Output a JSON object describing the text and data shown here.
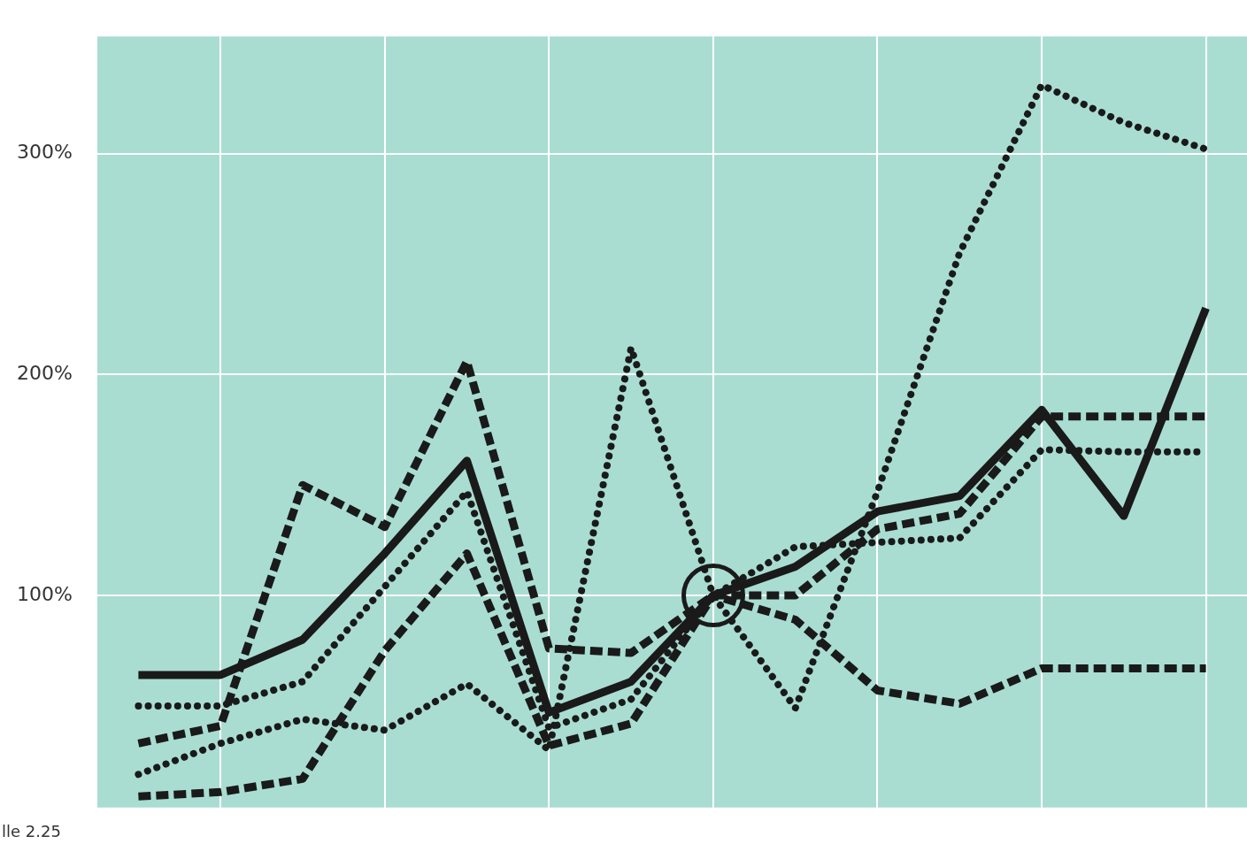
{
  "chart_data": {
    "type": "line",
    "ylim": [
      4,
      353
    ],
    "categories": [
      null,
      null,
      null,
      null,
      null,
      null,
      null,
      null,
      null,
      null,
      null,
      null,
      null,
      null
    ],
    "yticks": [
      {
        "value": 100,
        "label": "100%"
      },
      {
        "value": 200,
        "label": "200%"
      },
      {
        "value": 300,
        "label": "300%"
      }
    ],
    "tick_labels": "y",
    "grid": true,
    "legend": false,
    "marker": "none",
    "annotations": [
      "lle 2.25"
    ],
    "series": [
      {
        "color": "#1a1a1a",
        "line_style": "solid",
        "values": [
          64,
          64,
          80,
          119,
          161,
          47,
          61,
          100,
          113,
          138,
          145,
          184,
          136,
          230
        ]
      },
      {
        "color": "#1a1a1a",
        "line_style": "dotted",
        "values": [
          50,
          50,
          61,
          104,
          147,
          40,
          53,
          100,
          122,
          124,
          126,
          166,
          165,
          165
        ]
      },
      {
        "color": "#1a1a1a",
        "line_style": "dashed",
        "values": [
          33,
          41,
          150,
          131,
          206,
          76,
          74,
          100,
          100,
          130,
          137,
          181,
          181,
          181
        ]
      },
      {
        "color": "#1a1a1a",
        "line_style": "dotted",
        "values": [
          19,
          33,
          44,
          39,
          60,
          30,
          212,
          100,
          49,
          147,
          255,
          331,
          314,
          302
        ]
      },
      {
        "color": "#1a1a1a",
        "line_style": "dashed",
        "values": [
          9,
          11,
          17,
          75,
          119,
          32,
          42,
          100,
          89,
          57,
          51,
          67,
          67,
          67
        ]
      }
    ]
  }
}
